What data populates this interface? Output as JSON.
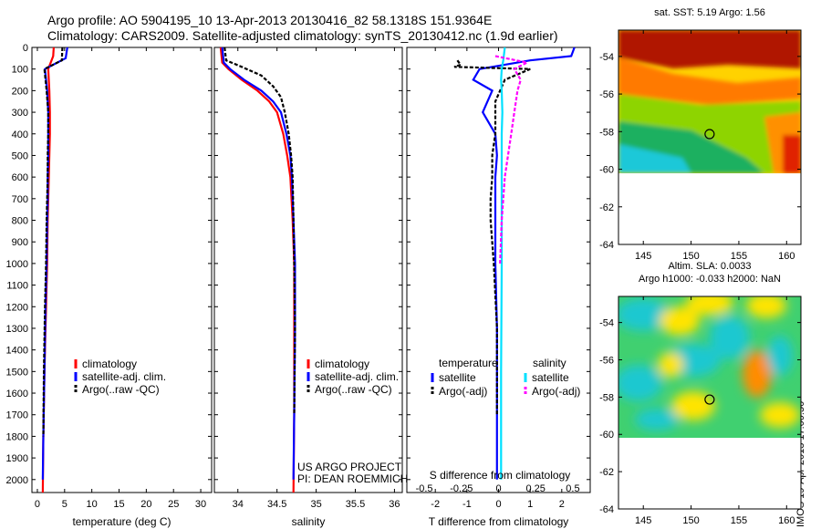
{
  "header": {
    "title_line1": "Argo profile: AO 5904195_10 13-Apr-2013 20130416_82 58.1318S 151.9364E",
    "title_line2": "Climatology: CARS2009. Satellite-adjusted climatology: synTS_20130412.nc (1.9d earlier)"
  },
  "footer": {
    "vertical_label": "IMOS 19-Apr-2013 17:00:50"
  },
  "colors": {
    "climatology": "#ff0000",
    "satellite": "#0000ff",
    "argo": "#000000",
    "salinity_satellite": "#00e0ff",
    "salinity_argo": "#ff00ff"
  },
  "chart_data": [
    {
      "type": "line",
      "xlabel": "temperature (deg C)",
      "xticks": [
        0,
        5,
        10,
        15,
        20,
        25,
        30
      ],
      "xlim": [
        -1,
        32
      ],
      "ylim": [
        2060,
        0
      ],
      "yticks": [
        0,
        100,
        200,
        300,
        400,
        500,
        600,
        700,
        800,
        900,
        1000,
        1100,
        1200,
        1300,
        1400,
        1500,
        1600,
        1700,
        1800,
        1900,
        2000
      ],
      "legend": [
        "climatology",
        "satellite-adj. clim.",
        "Argo(..raw -QC)"
      ],
      "series": [
        {
          "name": "climatology",
          "x": [
            3.0,
            2.9,
            2.0,
            2.2,
            2.3,
            2.3,
            2.2,
            2.1,
            2.0,
            1.9,
            1.8,
            1.6,
            1.3,
            1.1,
            1.0
          ],
          "y": [
            0,
            40,
            100,
            200,
            300,
            400,
            500,
            600,
            700,
            800,
            1000,
            1200,
            1500,
            1800,
            2060
          ]
        },
        {
          "name": "satellite-adj. clim.",
          "x": [
            5.5,
            5.2,
            1.4,
            1.8,
            2.0,
            2.0,
            2.0,
            1.9,
            1.9,
            1.8,
            1.7,
            1.5,
            1.3,
            1.1,
            1.0
          ],
          "y": [
            0,
            50,
            100,
            200,
            300,
            400,
            500,
            600,
            700,
            800,
            1000,
            1200,
            1500,
            1800,
            2000
          ]
        },
        {
          "name": "Argo(..raw -QC)",
          "x": [
            4.6,
            4.5,
            1.3,
            1.7,
            2.0,
            2.0,
            1.9,
            1.9,
            1.8,
            1.7,
            1.6,
            1.4,
            1.2,
            1.1
          ],
          "y": [
            0,
            60,
            100,
            200,
            300,
            400,
            500,
            600,
            700,
            800,
            1000,
            1200,
            1500,
            1800
          ]
        }
      ]
    },
    {
      "type": "line",
      "xlabel": "salinity",
      "xticks": [
        34,
        34.5,
        35,
        35.5,
        36
      ],
      "xlim": [
        33.7,
        36.1
      ],
      "ylim": [
        2060,
        0
      ],
      "legend": [
        "climatology",
        "satellite-adj. clim.",
        "Argo(..raw -QC)"
      ],
      "annotation": [
        "US ARGO PROJECT",
        "PI: DEAN ROEMMICH"
      ],
      "series": [
        {
          "name": "climatology",
          "x": [
            33.78,
            33.8,
            33.88,
            34.05,
            34.25,
            34.4,
            34.5,
            34.58,
            34.63,
            34.67,
            34.7,
            34.72,
            34.72,
            34.72,
            34.71
          ],
          "y": [
            0,
            70,
            100,
            150,
            200,
            250,
            300,
            400,
            500,
            600,
            800,
            1000,
            1300,
            1700,
            2060
          ]
        },
        {
          "name": "satellite-adj. clim.",
          "x": [
            33.8,
            33.82,
            33.9,
            34.08,
            34.3,
            34.45,
            34.55,
            34.62,
            34.67,
            34.69,
            34.71,
            34.73,
            34.73,
            34.72,
            34.71
          ],
          "y": [
            0,
            70,
            100,
            150,
            200,
            250,
            300,
            400,
            500,
            600,
            800,
            1000,
            1300,
            1700,
            2000
          ]
        },
        {
          "name": "Argo(..raw -QC)",
          "x": [
            33.83,
            33.85,
            34.05,
            34.3,
            34.45,
            34.55,
            34.6,
            34.65,
            34.68,
            34.7,
            34.71,
            34.72,
            34.73,
            34.72
          ],
          "y": [
            0,
            60,
            90,
            130,
            180,
            230,
            300,
            400,
            500,
            600,
            800,
            1000,
            1300,
            1700
          ]
        }
      ]
    },
    {
      "type": "line",
      "xlabel": "T difference from climatology",
      "xticks": [
        -2,
        -1,
        0,
        1,
        2
      ],
      "secondary_xlabel": "S difference from climatology",
      "secondary_xticks": [
        "-0.5",
        "-0.25",
        "0",
        "0.25",
        "0.5"
      ],
      "xlim": [
        -2.9,
        2.9
      ],
      "ylim": [
        2060,
        0
      ],
      "legend_temperature": {
        "title": "temperature",
        "items": [
          "satellite",
          "Argo(-adj)"
        ]
      },
      "legend_salinity": {
        "title": "salinity",
        "items": [
          "satellite",
          "Argo(-adj)"
        ]
      },
      "series": [
        {
          "name": "temperature satellite",
          "x": [
            2.4,
            2.3,
            1.0,
            -0.6,
            -0.8,
            -0.2,
            -0.5,
            -0.1,
            -0.05,
            -0.1,
            -0.1,
            -0.1,
            -0.05,
            -0.05,
            -0.05
          ],
          "y": [
            0,
            40,
            60,
            100,
            150,
            200,
            300,
            400,
            500,
            600,
            800,
            1000,
            1300,
            1700,
            2000
          ]
        },
        {
          "name": "temperature Argo(-adj)",
          "x": [
            -1.3,
            -1.2,
            -1.4,
            1.0,
            0.2,
            -0.1,
            -0.1,
            -0.2,
            -0.2,
            -0.25,
            -0.25,
            -0.15,
            -0.05,
            -0.05
          ],
          "y": [
            60,
            80,
            90,
            100,
            150,
            250,
            400,
            500,
            600,
            700,
            800,
            1000,
            1300,
            1700
          ]
        },
        {
          "name": "salinity satellite",
          "x": [
            0.2,
            0.15,
            0.1,
            0.08,
            0.1,
            0.12,
            0.1,
            0.1,
            0.1,
            0.1,
            0.1,
            0.08,
            0.08
          ],
          "y": [
            0,
            60,
            100,
            150,
            200,
            300,
            400,
            500,
            600,
            800,
            1000,
            1500,
            2000
          ]
        },
        {
          "name": "salinity Argo(-adj)",
          "x": [
            -0.1,
            0.9,
            0.5,
            0.7,
            0.6,
            0.5,
            0.4,
            0.3,
            0.2,
            0.1,
            0.05
          ],
          "y": [
            40,
            70,
            100,
            150,
            200,
            300,
            400,
            500,
            600,
            800,
            1000
          ]
        }
      ]
    },
    {
      "type": "heatmap",
      "title": "sat. SST: 5.19 Argo: 1.56",
      "xticks": [
        145,
        150,
        155,
        160
      ],
      "yticks": [
        -54,
        -56,
        -58,
        -60,
        -62,
        -64
      ],
      "marker": {
        "lon": 151.9364,
        "lat": -58.1318
      }
    },
    {
      "type": "heatmap",
      "title": "Altim. SLA: 0.0033",
      "subtitle": "Argo h1000: -0.033 h2000: NaN",
      "xticks": [
        145,
        150,
        155,
        160
      ],
      "yticks": [
        -54,
        -56,
        -58,
        -60,
        -62,
        -64
      ],
      "marker": {
        "lon": 151.9364,
        "lat": -58.1318
      }
    }
  ]
}
